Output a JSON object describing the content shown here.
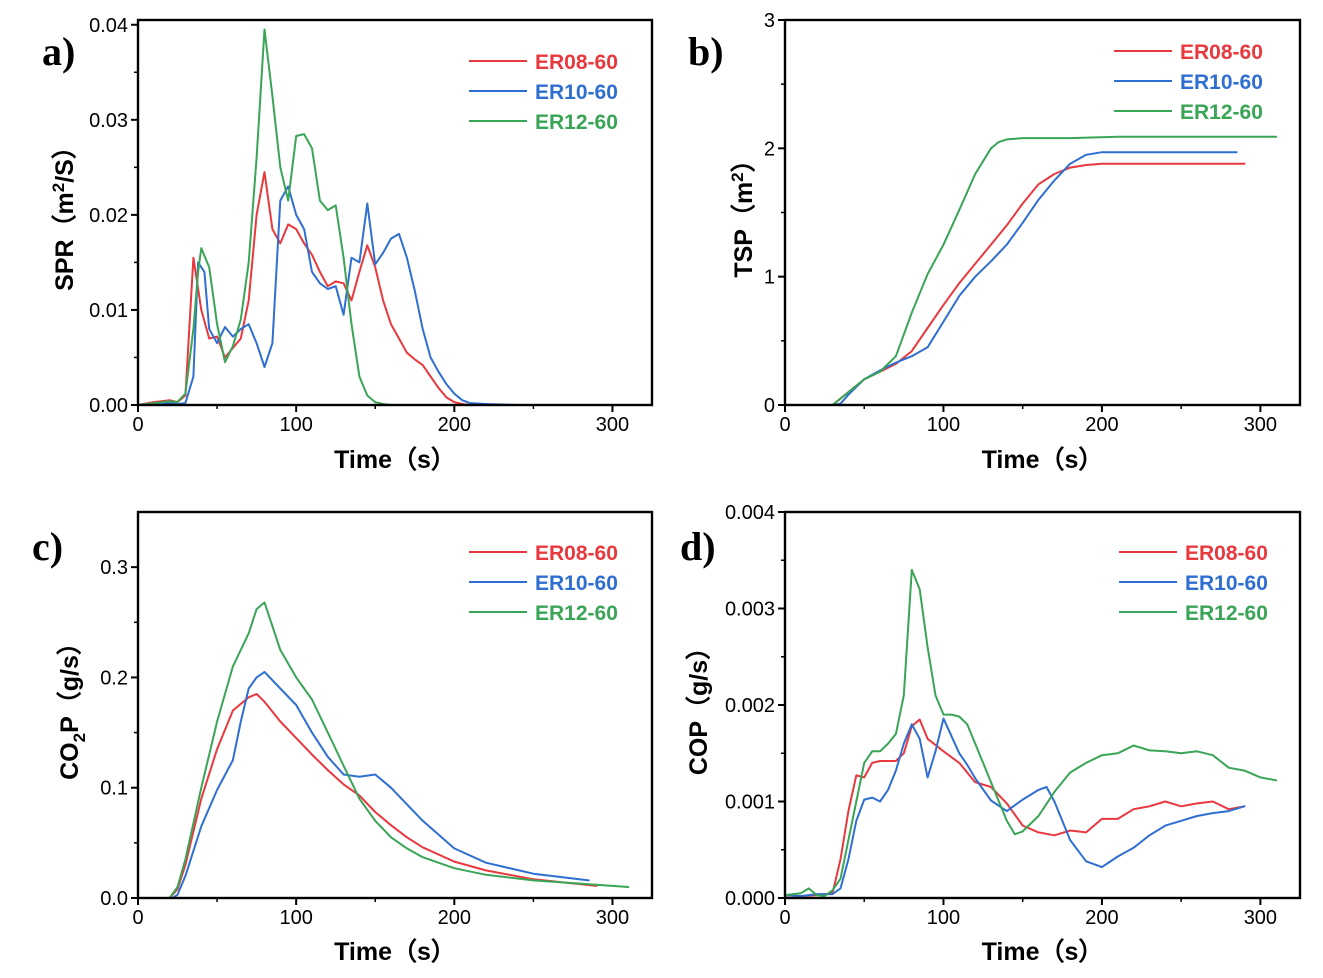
{
  "colors": {
    "ER08-60": "#e8393e",
    "ER10-60": "#2f6fd1",
    "ER12-60": "#3aa457"
  },
  "chart_data": [
    {
      "panel_label": "a)",
      "type": "line",
      "xlabel": "Time（s）",
      "ylabel": "SPR（m²/S）",
      "ylabel_parts": [
        "SPR（m",
        "2",
        "/S）"
      ],
      "xlim": [
        0,
        325
      ],
      "ylim": [
        0,
        0.0405
      ],
      "xticks": [
        "0",
        "100",
        "200",
        "300"
      ],
      "yticks": [
        "0.00",
        "0.01",
        "0.02",
        "0.03",
        "0.04"
      ],
      "legend": "top-right",
      "series": [
        {
          "name": "ER08-60",
          "x": [
            0,
            10,
            20,
            25,
            30,
            35,
            40,
            45,
            50,
            55,
            60,
            65,
            70,
            75,
            80,
            85,
            90,
            95,
            100,
            105,
            110,
            115,
            120,
            125,
            130,
            135,
            140,
            145,
            150,
            155,
            160,
            165,
            170,
            175,
            180,
            185,
            190,
            195,
            200,
            205,
            210
          ],
          "y": [
            0,
            0.0003,
            0.0005,
            0.0003,
            0.001,
            0.0155,
            0.01,
            0.007,
            0.0072,
            0.005,
            0.006,
            0.007,
            0.011,
            0.02,
            0.0245,
            0.0185,
            0.017,
            0.019,
            0.0185,
            0.017,
            0.0158,
            0.014,
            0.0125,
            0.013,
            0.0128,
            0.011,
            0.014,
            0.0168,
            0.0145,
            0.011,
            0.0085,
            0.007,
            0.0055,
            0.0048,
            0.0042,
            0.003,
            0.0018,
            0.0008,
            0.0003,
            0.0001,
            0
          ]
        },
        {
          "name": "ER10-60",
          "x": [
            0,
            10,
            20,
            25,
            30,
            35,
            38,
            42,
            45,
            50,
            55,
            60,
            65,
            70,
            75,
            80,
            85,
            90,
            95,
            100,
            105,
            110,
            115,
            120,
            125,
            130,
            135,
            140,
            145,
            150,
            155,
            160,
            165,
            170,
            175,
            180,
            185,
            190,
            195,
            200,
            205,
            210,
            220,
            240
          ],
          "y": [
            0,
            0,
            0.0002,
            0.0001,
            0.0002,
            0.003,
            0.015,
            0.014,
            0.008,
            0.0065,
            0.0082,
            0.0072,
            0.008,
            0.0085,
            0.0065,
            0.004,
            0.0065,
            0.0215,
            0.023,
            0.02,
            0.0185,
            0.014,
            0.0128,
            0.0122,
            0.0125,
            0.0095,
            0.0155,
            0.015,
            0.0212,
            0.0148,
            0.016,
            0.0175,
            0.018,
            0.0155,
            0.012,
            0.008,
            0.005,
            0.0035,
            0.0022,
            0.0012,
            0.0005,
            0.0002,
            0.0001,
            0
          ]
        },
        {
          "name": "ER12-60",
          "x": [
            0,
            10,
            20,
            25,
            30,
            35,
            38,
            40,
            45,
            50,
            55,
            60,
            65,
            70,
            75,
            80,
            85,
            90,
            95,
            100,
            105,
            110,
            115,
            120,
            125,
            130,
            135,
            140,
            145,
            150,
            155,
            160,
            170,
            180
          ],
          "y": [
            0,
            0.0002,
            0.0004,
            0.0003,
            0.0012,
            0.008,
            0.014,
            0.0165,
            0.0145,
            0.0085,
            0.0045,
            0.0062,
            0.009,
            0.015,
            0.026,
            0.0395,
            0.0325,
            0.025,
            0.0215,
            0.0283,
            0.0285,
            0.027,
            0.0215,
            0.0205,
            0.021,
            0.0155,
            0.0085,
            0.003,
            0.001,
            0.0003,
            0.0001,
            0,
            0,
            0
          ]
        }
      ]
    },
    {
      "panel_label": "b)",
      "type": "line",
      "xlabel": "Time（s）",
      "ylabel": "TSP（m²）",
      "ylabel_parts": [
        "TSP（m",
        "2",
        "）"
      ],
      "xlim": [
        0,
        325
      ],
      "ylim": [
        0,
        3
      ],
      "xticks": [
        "0",
        "100",
        "200",
        "300"
      ],
      "yticks": [
        "0",
        "1",
        "2",
        "3"
      ],
      "legend": "top-right",
      "series": [
        {
          "name": "ER08-60",
          "x": [
            0,
            30,
            40,
            50,
            60,
            70,
            80,
            90,
            100,
            110,
            120,
            130,
            140,
            150,
            160,
            170,
            180,
            190,
            200,
            220,
            250,
            290
          ],
          "y": [
            0,
            0,
            0.1,
            0.2,
            0.26,
            0.32,
            0.42,
            0.6,
            0.78,
            0.95,
            1.1,
            1.25,
            1.4,
            1.57,
            1.72,
            1.8,
            1.85,
            1.87,
            1.88,
            1.88,
            1.88,
            1.88
          ]
        },
        {
          "name": "ER10-60",
          "x": [
            0,
            30,
            35,
            40,
            50,
            60,
            70,
            80,
            90,
            100,
            110,
            120,
            130,
            140,
            150,
            160,
            170,
            180,
            190,
            200,
            220,
            250,
            285
          ],
          "y": [
            0,
            0,
            0.01,
            0.08,
            0.2,
            0.27,
            0.33,
            0.38,
            0.45,
            0.65,
            0.85,
            1.0,
            1.12,
            1.25,
            1.42,
            1.6,
            1.75,
            1.88,
            1.95,
            1.97,
            1.97,
            1.97,
            1.97
          ]
        },
        {
          "name": "ER12-60",
          "x": [
            0,
            30,
            40,
            50,
            60,
            70,
            80,
            90,
            100,
            110,
            120,
            130,
            135,
            140,
            150,
            180,
            210,
            250,
            310
          ],
          "y": [
            0,
            0,
            0.1,
            0.2,
            0.26,
            0.38,
            0.72,
            1.02,
            1.25,
            1.52,
            1.8,
            2.0,
            2.05,
            2.07,
            2.08,
            2.08,
            2.09,
            2.09,
            2.09
          ]
        }
      ]
    },
    {
      "panel_label": "c)",
      "type": "line",
      "xlabel": "Time（s）",
      "ylabel": "CO₂P（g/s）",
      "ylabel_parts": [
        "CO",
        "2",
        "P（g/s）"
      ],
      "xlim": [
        0,
        325
      ],
      "ylim": [
        0,
        0.35
      ],
      "xticks": [
        "0",
        "100",
        "200",
        "300"
      ],
      "yticks": [
        "0.0",
        "0.1",
        "0.2",
        "0.3"
      ],
      "legend": "top-right",
      "series": [
        {
          "name": "ER08-60",
          "x": [
            0,
            20,
            25,
            30,
            40,
            50,
            60,
            70,
            75,
            80,
            90,
            100,
            110,
            120,
            130,
            140,
            150,
            160,
            170,
            180,
            200,
            220,
            250,
            290
          ],
          "y": [
            0,
            0,
            0.008,
            0.03,
            0.09,
            0.135,
            0.17,
            0.182,
            0.185,
            0.178,
            0.16,
            0.145,
            0.13,
            0.116,
            0.103,
            0.093,
            0.078,
            0.066,
            0.055,
            0.046,
            0.033,
            0.025,
            0.017,
            0.011
          ]
        },
        {
          "name": "ER10-60",
          "x": [
            0,
            22,
            25,
            30,
            40,
            50,
            60,
            65,
            70,
            75,
            80,
            90,
            100,
            110,
            120,
            130,
            140,
            150,
            160,
            170,
            180,
            200,
            220,
            250,
            285
          ],
          "y": [
            0,
            0,
            0.003,
            0.02,
            0.065,
            0.098,
            0.125,
            0.16,
            0.19,
            0.2,
            0.205,
            0.19,
            0.175,
            0.15,
            0.128,
            0.112,
            0.11,
            0.112,
            0.1,
            0.085,
            0.07,
            0.045,
            0.032,
            0.022,
            0.016
          ]
        },
        {
          "name": "ER12-60",
          "x": [
            0,
            20,
            25,
            30,
            40,
            50,
            60,
            70,
            75,
            80,
            90,
            100,
            110,
            120,
            130,
            140,
            150,
            160,
            170,
            180,
            200,
            220,
            250,
            310
          ],
          "y": [
            0,
            0,
            0.01,
            0.035,
            0.1,
            0.16,
            0.21,
            0.24,
            0.262,
            0.268,
            0.225,
            0.2,
            0.18,
            0.15,
            0.12,
            0.09,
            0.07,
            0.055,
            0.045,
            0.037,
            0.027,
            0.021,
            0.016,
            0.01
          ]
        }
      ]
    },
    {
      "panel_label": "d)",
      "type": "line",
      "xlabel": "Time（s）",
      "ylabel": "COP（g/s）",
      "ylabel_parts": [
        "COP（g/s）"
      ],
      "xlim": [
        0,
        325
      ],
      "ylim": [
        0,
        0.004
      ],
      "xticks": [
        "0",
        "100",
        "200",
        "300"
      ],
      "yticks": [
        "0.000",
        "0.001",
        "0.002",
        "0.003",
        "0.004"
      ],
      "legend": "top-right",
      "series": [
        {
          "name": "ER08-60",
          "x": [
            0,
            10,
            20,
            30,
            35,
            40,
            45,
            50,
            55,
            60,
            70,
            75,
            80,
            85,
            90,
            100,
            110,
            120,
            130,
            140,
            150,
            160,
            170,
            180,
            190,
            200,
            210,
            220,
            230,
            240,
            250,
            260,
            270,
            280,
            290
          ],
          "y": [
            3e-05,
            2e-05,
            3e-05,
            5e-05,
            0.0004,
            0.0009,
            0.00127,
            0.00125,
            0.0014,
            0.00142,
            0.00142,
            0.0015,
            0.00178,
            0.00185,
            0.00165,
            0.00152,
            0.0014,
            0.0012,
            0.00115,
            0.00098,
            0.00075,
            0.00068,
            0.00065,
            0.0007,
            0.00068,
            0.00082,
            0.00082,
            0.00092,
            0.00095,
            0.001,
            0.00095,
            0.00098,
            0.001,
            0.00092,
            0.00095
          ]
        },
        {
          "name": "ER10-60",
          "x": [
            0,
            10,
            20,
            30,
            35,
            40,
            45,
            50,
            55,
            60,
            65,
            70,
            75,
            80,
            85,
            90,
            95,
            100,
            105,
            110,
            115,
            120,
            130,
            140,
            150,
            160,
            165,
            170,
            180,
            190,
            200,
            210,
            220,
            230,
            240,
            250,
            260,
            270,
            280,
            290
          ],
          "y": [
            3e-05,
            2e-05,
            4e-05,
            4e-05,
            0.0001,
            0.0004,
            0.0008,
            0.00102,
            0.00104,
            0.001,
            0.00112,
            0.00132,
            0.0016,
            0.0018,
            0.00165,
            0.00125,
            0.00152,
            0.00186,
            0.00168,
            0.0015,
            0.00138,
            0.00124,
            0.00101,
            0.0009,
            0.00102,
            0.00112,
            0.00115,
            0.001,
            0.0006,
            0.00038,
            0.00032,
            0.00043,
            0.00052,
            0.00065,
            0.00075,
            0.0008,
            0.00085,
            0.00088,
            0.0009,
            0.00095
          ]
        },
        {
          "name": "ER12-60",
          "x": [
            0,
            10,
            15,
            20,
            25,
            30,
            35,
            40,
            45,
            50,
            55,
            60,
            65,
            70,
            75,
            80,
            85,
            90,
            95,
            100,
            105,
            110,
            115,
            120,
            130,
            140,
            145,
            150,
            160,
            170,
            180,
            190,
            200,
            210,
            220,
            230,
            240,
            250,
            260,
            270,
            280,
            290,
            300,
            310
          ],
          "y": [
            3e-05,
            5e-05,
            0.0001,
            3e-05,
            2e-05,
            8e-05,
            0.0002,
            0.0006,
            0.001,
            0.0014,
            0.00152,
            0.00152,
            0.0016,
            0.0017,
            0.0021,
            0.0034,
            0.0032,
            0.0026,
            0.0021,
            0.0019,
            0.0019,
            0.00188,
            0.0018,
            0.0016,
            0.0012,
            0.0008,
            0.00066,
            0.00069,
            0.00085,
            0.0011,
            0.0013,
            0.0014,
            0.00148,
            0.0015,
            0.00158,
            0.00153,
            0.00152,
            0.0015,
            0.00152,
            0.00148,
            0.00135,
            0.00132,
            0.00125,
            0.00122
          ]
        }
      ]
    }
  ]
}
